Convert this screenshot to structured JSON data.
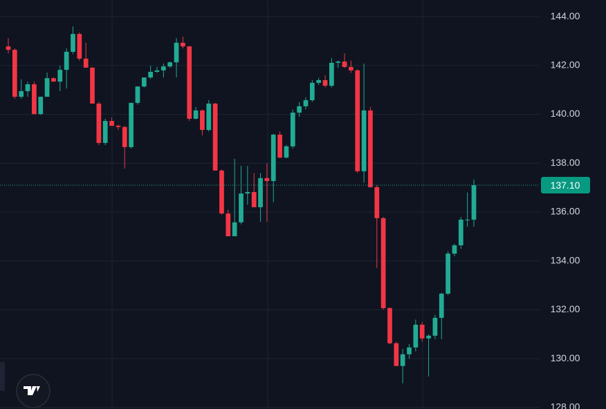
{
  "chart_data": {
    "type": "candlestick",
    "up_color": "#22ab94",
    "down_color": "#f23645",
    "open": [
      142.78,
      142.64,
      140.72,
      140.95,
      141.23,
      140.01,
      140.72,
      141.48,
      141.34,
      141.82,
      142.56,
      143.29,
      142.28,
      141.91,
      140.44,
      138.83,
      139.73,
      139.53,
      139.48,
      138.66,
      140.47,
      141.14,
      141.51,
      141.74,
      141.8,
      141.96,
      142.13,
      142.93,
      142.78,
      139.82,
      140.16,
      139.36,
      140.44,
      137.7,
      135.94,
      135.01,
      135.58,
      136.76,
      136.82,
      136.2,
      137.39,
      137.27,
      139.17,
      138.23,
      138.69,
      140.07,
      140.33,
      140.58,
      141.29,
      141.4,
      141.17,
      142.11,
      142.16,
      141.94,
      141.8,
      137.67,
      140.16,
      137.02,
      135.75,
      132.07,
      130.63,
      129.7,
      130.18,
      130.46,
      131.39,
      130.83,
      130.94,
      131.67,
      132.66,
      134.3,
      134.64,
      135.69,
      135.69
    ],
    "high": [
      143.12,
      142.7,
      141.43,
      141.34,
      141.34,
      140.72,
      141.71,
      141.51,
      141.99,
      142.7,
      143.6,
      143.35,
      142.93,
      141.94,
      140.52,
      139.82,
      139.87,
      139.58,
      139.53,
      140.47,
      141.14,
      141.51,
      141.99,
      141.94,
      142.08,
      142.16,
      143.12,
      143.18,
      142.8,
      140.3,
      140.2,
      140.58,
      140.47,
      137.75,
      136.1,
      138.18,
      137.89,
      137.89,
      137.6,
      137.6,
      138.0,
      139.2,
      139.3,
      138.75,
      140.2,
      140.5,
      140.7,
      141.4,
      141.5,
      141.6,
      142.3,
      142.2,
      142.5,
      142.2,
      141.85,
      142.08,
      140.3,
      137.1,
      135.8,
      132.1,
      130.7,
      130.4,
      130.6,
      131.6,
      131.5,
      131.0,
      131.8,
      132.7,
      134.4,
      134.7,
      135.8,
      136.8,
      137.33
    ],
    "low": [
      142.5,
      140.64,
      140.64,
      140.72,
      140.0,
      139.98,
      140.72,
      141.34,
      140.95,
      141.06,
      142.47,
      142.2,
      141.91,
      140.44,
      138.74,
      138.74,
      139.53,
      139.36,
      137.78,
      138.6,
      140.4,
      141.1,
      141.45,
      141.7,
      141.51,
      141.9,
      141.51,
      142.7,
      139.73,
      139.8,
      139.14,
      139.3,
      137.7,
      135.9,
      135.01,
      135.01,
      135.5,
      136.3,
      136.2,
      135.6,
      135.6,
      136.4,
      138.2,
      138.2,
      138.6,
      139.9,
      140.2,
      140.5,
      141.2,
      141.1,
      141.1,
      141.9,
      141.9,
      141.7,
      137.6,
      137.2,
      137.0,
      133.71,
      132.0,
      130.6,
      129.7,
      128.99,
      130.0,
      130.3,
      130.7,
      129.27,
      130.8,
      130.8,
      132.6,
      134.2,
      134.5,
      135.4,
      135.4
    ],
    "close": [
      142.64,
      140.72,
      140.95,
      141.23,
      140.01,
      140.72,
      141.48,
      141.34,
      141.82,
      142.56,
      143.29,
      142.28,
      141.91,
      140.44,
      138.83,
      139.73,
      139.53,
      139.48,
      138.66,
      140.47,
      141.14,
      141.51,
      141.74,
      141.8,
      141.96,
      142.13,
      142.93,
      142.78,
      139.82,
      140.16,
      139.36,
      140.44,
      137.7,
      135.94,
      135.01,
      135.58,
      136.76,
      136.82,
      136.2,
      137.39,
      137.27,
      139.17,
      138.23,
      138.69,
      140.07,
      140.33,
      140.58,
      141.29,
      141.4,
      141.17,
      142.11,
      142.16,
      141.94,
      141.8,
      137.67,
      140.16,
      137.02,
      135.75,
      132.07,
      130.63,
      129.7,
      130.18,
      130.46,
      131.39,
      130.83,
      130.94,
      131.67,
      132.66,
      134.3,
      134.64,
      135.69,
      135.69,
      137.1
    ],
    "ylim": [
      127.94,
      144.68
    ],
    "yticks": [
      {
        "value": 128,
        "label": "128.00"
      },
      {
        "value": 130,
        "label": "130.00"
      },
      {
        "value": 132,
        "label": "132.00"
      },
      {
        "value": 134,
        "label": "134.00"
      },
      {
        "value": 136,
        "label": "136.00"
      },
      {
        "value": 138,
        "label": "138.00"
      },
      {
        "value": 140,
        "label": "140.00"
      },
      {
        "value": 142,
        "label": "142.00"
      },
      {
        "value": 144,
        "label": "144.00"
      }
    ],
    "last_price": {
      "value": 137.1,
      "label": "137.10"
    },
    "grid": true
  }
}
